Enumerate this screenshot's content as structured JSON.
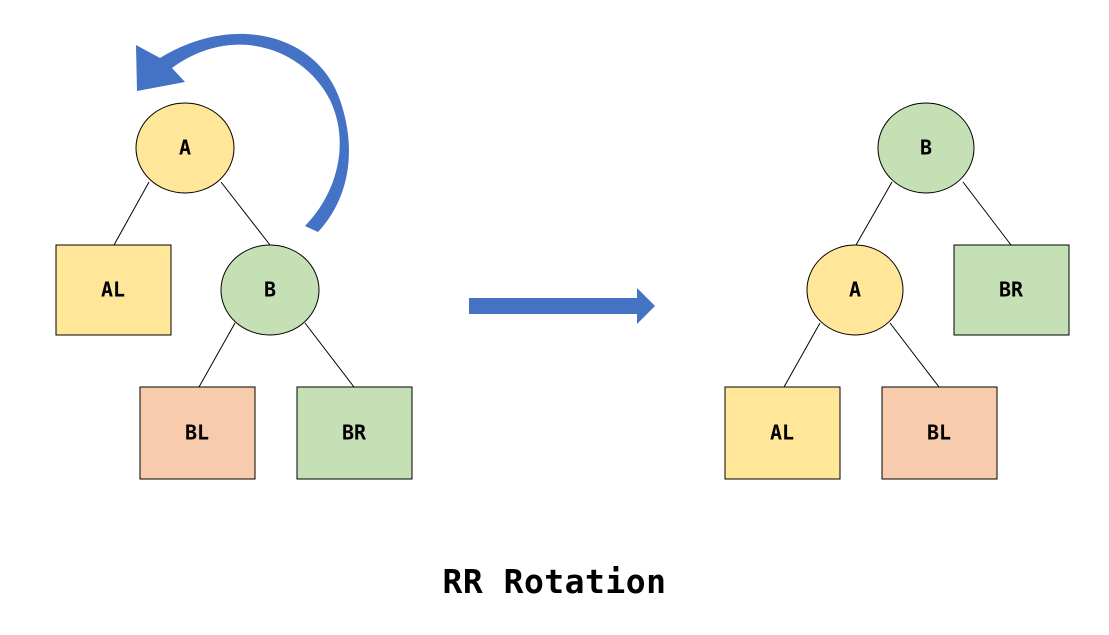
{
  "title": "RR Rotation",
  "colors": {
    "yellow": "#FFE699",
    "green": "#C5E0B4",
    "salmon": "#F8CBAD",
    "arrow_blue": "#4472C4",
    "edge": "#000000"
  },
  "before": {
    "A": "A",
    "B": "B",
    "AL": "AL",
    "BL": "BL",
    "BR": "BR"
  },
  "after": {
    "B": "B",
    "A": "A",
    "BR": "BR",
    "AL": "AL",
    "BL": "BL"
  },
  "icons": {
    "rotation_arrow": "curved-arrow-counterclockwise",
    "transition_arrow": "arrow-right"
  }
}
